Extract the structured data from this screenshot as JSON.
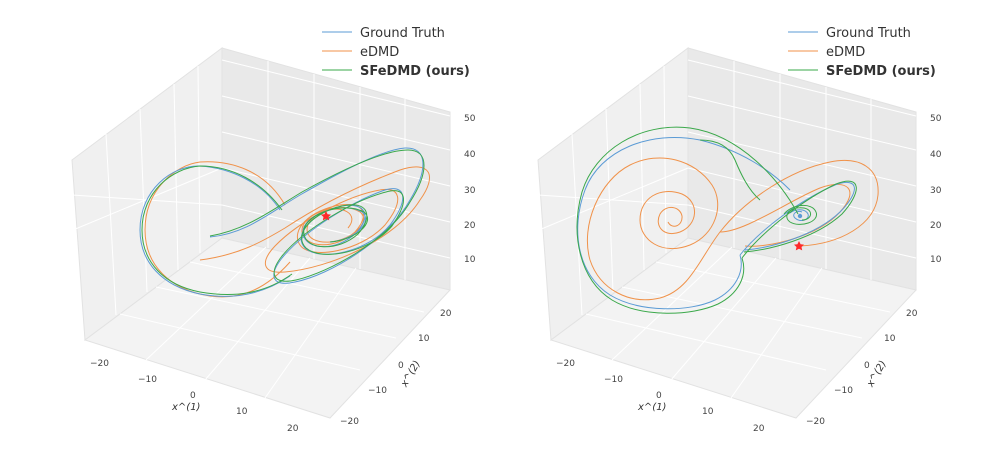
{
  "chart_data": [
    {
      "type": "line",
      "panel": "left",
      "projection": "3d",
      "title": "",
      "legend_location": "upper-right",
      "series": [
        {
          "name": "Ground Truth",
          "color": "#5b9bd5"
        },
        {
          "name": "eDMD",
          "color": "#f0924a"
        },
        {
          "name": "SFeDMD (ours)",
          "color": "#3aa84a",
          "bold_label": true
        }
      ],
      "marker": {
        "shape": "star",
        "color": "#ff2a2a",
        "meaning": "initial point"
      },
      "axes": {
        "x": {
          "label": "x^(1)",
          "ticks": [
            "−20",
            "−10",
            "0",
            "10",
            "20"
          ]
        },
        "y": {
          "label": "x^(2)",
          "ticks": [
            "−20",
            "−10",
            "0",
            "10",
            "20"
          ]
        },
        "z": {
          "label": "",
          "ticks": [
            "10",
            "20",
            "30",
            "40",
            "50"
          ]
        }
      },
      "grid": true
    },
    {
      "type": "line",
      "panel": "right",
      "projection": "3d",
      "title": "",
      "legend_location": "upper-right",
      "series": [
        {
          "name": "Ground Truth",
          "color": "#5b9bd5"
        },
        {
          "name": "eDMD",
          "color": "#f0924a"
        },
        {
          "name": "SFeDMD (ours)",
          "color": "#3aa84a",
          "bold_label": true
        }
      ],
      "marker": {
        "shape": "star",
        "color": "#ff2a2a",
        "meaning": "initial point"
      },
      "axes": {
        "x": {
          "label": "x^(1)",
          "ticks": [
            "−20",
            "−10",
            "0",
            "10",
            "20"
          ]
        },
        "y": {
          "label": "x^(2)",
          "ticks": [
            "−20",
            "−10",
            "0",
            "10",
            "20"
          ]
        },
        "z": {
          "label": "",
          "ticks": [
            "10",
            "20",
            "30",
            "40",
            "50"
          ]
        }
      },
      "grid": true
    }
  ]
}
